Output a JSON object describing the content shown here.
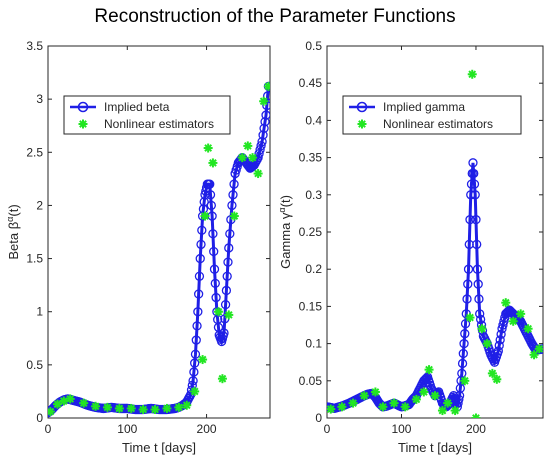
{
  "figure": {
    "title": "Reconstruction of the Parameter Functions"
  },
  "colors": {
    "implied": "#1f1fe6",
    "estimator": "#22e622"
  },
  "chart_data": [
    {
      "type": "scatter",
      "xlabel": "Time t [days]",
      "ylabel": "Beta β^α(t)",
      "ylabel_parts": {
        "base": "Beta β",
        "sup": "α",
        "tail": "(t)"
      },
      "xlim": [
        0,
        280
      ],
      "ylim": [
        0,
        3.5
      ],
      "xticks": [
        0,
        100,
        200
      ],
      "yticks": [
        0,
        0.5,
        1,
        1.5,
        2,
        2.5,
        3,
        3.5
      ],
      "ytick_labels": [
        "0",
        "0.5",
        "1",
        "1.5",
        "2",
        "2.5",
        "3",
        "3.5"
      ],
      "legend_position": "upper-left",
      "series": [
        {
          "name": "Implied beta",
          "style": "line-circle",
          "x": [
            0,
            5,
            10,
            15,
            20,
            25,
            30,
            40,
            50,
            60,
            70,
            80,
            90,
            100,
            110,
            120,
            130,
            140,
            150,
            160,
            165,
            170,
            175,
            180,
            183,
            186,
            189,
            192,
            195,
            198,
            201,
            204,
            207,
            210,
            213,
            216,
            219,
            222,
            225,
            228,
            232,
            236,
            240,
            245,
            250,
            255,
            260,
            265,
            270,
            275,
            278
          ],
          "y": [
            0.05,
            0.08,
            0.12,
            0.15,
            0.17,
            0.18,
            0.17,
            0.15,
            0.12,
            0.1,
            0.09,
            0.1,
            0.09,
            0.09,
            0.08,
            0.08,
            0.09,
            0.08,
            0.08,
            0.09,
            0.1,
            0.12,
            0.15,
            0.22,
            0.35,
            0.6,
            1.0,
            1.5,
            1.9,
            2.1,
            2.2,
            2.2,
            1.9,
            1.4,
            1.0,
            0.78,
            0.72,
            0.8,
            1.2,
            1.6,
            2.0,
            2.3,
            2.4,
            2.45,
            2.4,
            2.35,
            2.38,
            2.45,
            2.6,
            2.85,
            3.12
          ]
        },
        {
          "name": "Nonlinear estimators",
          "style": "star",
          "x": [
            3,
            12,
            20,
            28,
            45,
            60,
            75,
            90,
            105,
            120,
            135,
            150,
            165,
            175,
            185,
            195,
            198,
            202,
            208,
            215,
            220,
            228,
            235,
            245,
            252,
            258,
            265,
            272,
            278
          ],
          "y": [
            0.06,
            0.13,
            0.16,
            0.18,
            0.14,
            0.11,
            0.1,
            0.09,
            0.09,
            0.08,
            0.08,
            0.09,
            0.1,
            0.12,
            0.25,
            0.55,
            1.9,
            2.54,
            2.4,
            1.0,
            0.37,
            0.97,
            1.9,
            2.45,
            2.56,
            2.45,
            2.3,
            2.98,
            3.12
          ]
        }
      ]
    },
    {
      "type": "scatter",
      "xlabel": "Time t [days]",
      "ylabel": "Gamma γ^α(t)",
      "ylabel_parts": {
        "base": "Gamma γ",
        "sup": "α",
        "tail": "(t)"
      },
      "xlim": [
        0,
        290
      ],
      "ylim": [
        0,
        0.5
      ],
      "xticks": [
        0,
        100,
        200
      ],
      "yticks": [
        0,
        0.05,
        0.1,
        0.15,
        0.2,
        0.25,
        0.3,
        0.35,
        0.4,
        0.45,
        0.5
      ],
      "ytick_labels": [
        "0",
        "0.05",
        "0.1",
        "0.15",
        "0.2",
        "0.25",
        "0.3",
        "0.35",
        "0.4",
        "0.45",
        "0.5"
      ],
      "legend_position": "upper-left",
      "series": [
        {
          "name": "Implied gamma",
          "style": "line-circle",
          "x": [
            0,
            10,
            20,
            30,
            40,
            50,
            55,
            60,
            65,
            70,
            75,
            80,
            90,
            100,
            110,
            115,
            120,
            125,
            130,
            135,
            140,
            145,
            150,
            155,
            160,
            165,
            170,
            175,
            178,
            181,
            184,
            187,
            190,
            193,
            196,
            199,
            202,
            205,
            210,
            215,
            220,
            225,
            230,
            235,
            240,
            245,
            250,
            255,
            260,
            265,
            270,
            275,
            280,
            285,
            290
          ],
          "y": [
            0.015,
            0.013,
            0.016,
            0.02,
            0.025,
            0.03,
            0.032,
            0.033,
            0.028,
            0.02,
            0.015,
            0.016,
            0.02,
            0.015,
            0.018,
            0.025,
            0.03,
            0.04,
            0.05,
            0.055,
            0.04,
            0.03,
            0.035,
            0.02,
            0.015,
            0.02,
            0.03,
            0.015,
            0.03,
            0.06,
            0.1,
            0.14,
            0.2,
            0.3,
            0.343,
            0.3,
            0.2,
            0.14,
            0.11,
            0.1,
            0.085,
            0.075,
            0.09,
            0.12,
            0.14,
            0.145,
            0.14,
            0.135,
            0.13,
            0.12,
            0.11,
            0.1,
            0.092,
            0.092,
            0.093
          ]
        },
        {
          "name": "Nonlinear estimators",
          "style": "star",
          "x": [
            5,
            20,
            35,
            50,
            65,
            75,
            90,
            105,
            120,
            130,
            137,
            145,
            155,
            162,
            172,
            185,
            192,
            195,
            200,
            208,
            215,
            222,
            228,
            240,
            250,
            260,
            270,
            278,
            285
          ],
          "y": [
            0.012,
            0.015,
            0.02,
            0.03,
            0.035,
            0.015,
            0.02,
            0.015,
            0.025,
            0.035,
            0.065,
            0.03,
            0.01,
            0.02,
            0.01,
            0.05,
            0.135,
            0.462,
            0.0,
            0.12,
            0.1,
            0.06,
            0.052,
            0.155,
            0.13,
            0.14,
            0.12,
            0.085,
            0.093
          ]
        }
      ]
    }
  ]
}
